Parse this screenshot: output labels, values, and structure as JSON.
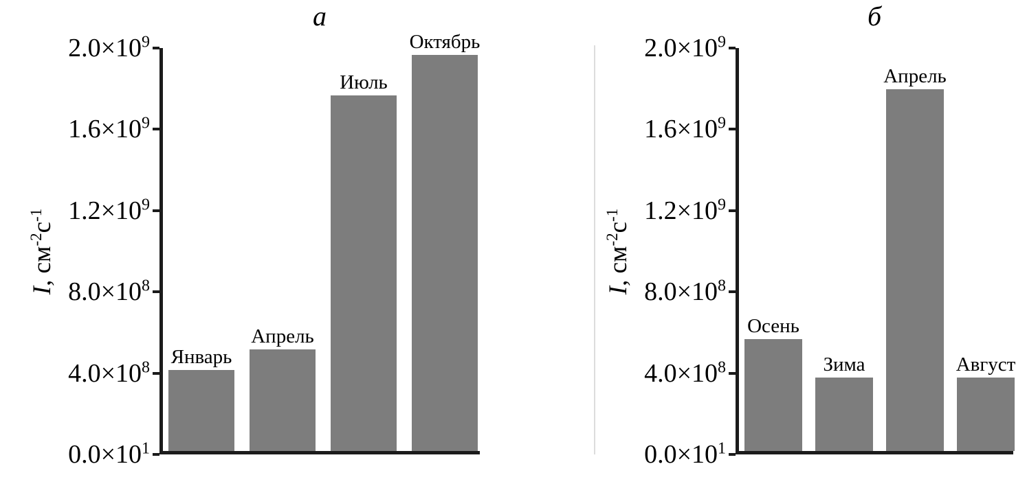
{
  "figure": {
    "description": "Two-panel bar figure",
    "panel_labels": [
      "а",
      "б"
    ]
  },
  "chart_data": [
    {
      "type": "bar",
      "panel_label": "а",
      "categories": [
        "Январь",
        "Апрель",
        "Июль",
        "Октябрь"
      ],
      "values": [
        400000000.0,
        500000000.0,
        1750000000.0,
        1950000000.0
      ],
      "title": "а",
      "xlabel": "",
      "ylabel": "I, см⁻²с⁻¹",
      "ylabel_parts": [
        {
          "text": "I",
          "italic": true,
          "sup": false
        },
        {
          "text": ", см",
          "italic": false,
          "sup": false
        },
        {
          "text": "-2",
          "italic": false,
          "sup": true
        },
        {
          "text": "с",
          "italic": false,
          "sup": false
        },
        {
          "text": "-1",
          "italic": false,
          "sup": true
        }
      ],
      "ylim": [
        0,
        2000000000.0
      ],
      "grid": false,
      "legend": "none",
      "bar_color": "#7d7d7d",
      "axis_color": "#1b1b1b",
      "yticks": [
        {
          "value": 0.0,
          "text": "0.0×10",
          "exp": "1"
        },
        {
          "value": 400000000.0,
          "text": "4.0×10",
          "exp": "8"
        },
        {
          "value": 800000000.0,
          "text": "8.0×10",
          "exp": "8"
        },
        {
          "value": 1200000000.0,
          "text": "1.2×10",
          "exp": "9"
        },
        {
          "value": 1600000000.0,
          "text": "1.6×10",
          "exp": "9"
        },
        {
          "value": 2000000000.0,
          "text": "2.0×10",
          "exp": "9"
        }
      ]
    },
    {
      "type": "bar",
      "panel_label": "б",
      "categories": [
        "Осень",
        "Зима",
        "Апрель",
        "Август"
      ],
      "values": [
        550000000.0,
        360000000.0,
        1780000000.0,
        360000000.0
      ],
      "title": "б",
      "xlabel": "",
      "ylabel": "I, см⁻²с⁻¹",
      "ylabel_parts": [
        {
          "text": "I",
          "italic": true,
          "sup": false
        },
        {
          "text": ", см",
          "italic": false,
          "sup": false
        },
        {
          "text": "-2",
          "italic": false,
          "sup": true
        },
        {
          "text": "с",
          "italic": false,
          "sup": false
        },
        {
          "text": "-1",
          "italic": false,
          "sup": true
        }
      ],
      "ylim": [
        0,
        2000000000.0
      ],
      "grid": false,
      "legend": "none",
      "bar_color": "#7d7d7d",
      "axis_color": "#1b1b1b",
      "yticks": [
        {
          "value": 0.0,
          "text": "0.0×10",
          "exp": "1"
        },
        {
          "value": 400000000.0,
          "text": "4.0×10",
          "exp": "8"
        },
        {
          "value": 800000000.0,
          "text": "8.0×10",
          "exp": "8"
        },
        {
          "value": 1200000000.0,
          "text": "1.2×10",
          "exp": "9"
        },
        {
          "value": 1600000000.0,
          "text": "1.6×10",
          "exp": "9"
        },
        {
          "value": 2000000000.0,
          "text": "2.0×10",
          "exp": "9"
        }
      ]
    }
  ]
}
